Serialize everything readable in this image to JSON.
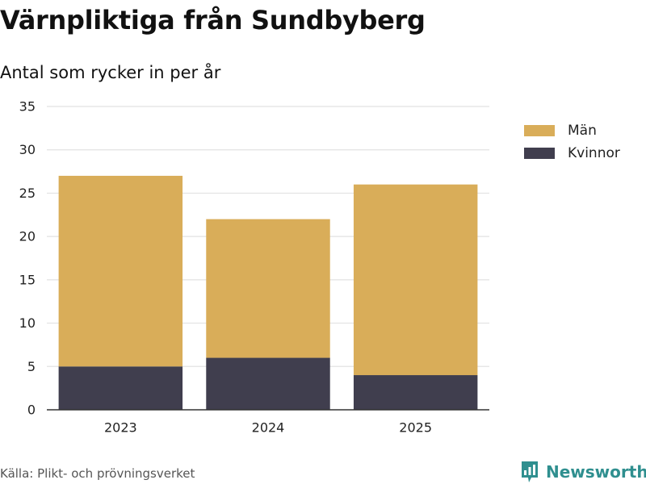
{
  "header": {
    "title": "Värnpliktiga från Sundbyberg",
    "subtitle": "Antal som rycker in per år"
  },
  "legend": {
    "items": [
      {
        "label": "Män",
        "color": "#d9ad59"
      },
      {
        "label": "Kvinnor",
        "color": "#403e4e"
      }
    ]
  },
  "footer": {
    "source": "Källa: Plikt- och prövningsverket",
    "brand": "Newsworthy",
    "brand_color": "#2f8f8f",
    "brand_icon": "newsworthy-logo-icon"
  },
  "chart_data": {
    "type": "bar",
    "stacked": true,
    "title": "Värnpliktiga från Sundbyberg",
    "subtitle": "Antal som rycker in per år",
    "xlabel": "",
    "ylabel": "",
    "categories": [
      "2023",
      "2024",
      "2025"
    ],
    "series": [
      {
        "name": "Kvinnor",
        "values": [
          5,
          6,
          4
        ],
        "color": "#403e4e"
      },
      {
        "name": "Män",
        "values": [
          22,
          16,
          22
        ],
        "color": "#d9ad59"
      }
    ],
    "ylim": [
      0,
      35
    ],
    "yticks": [
      0,
      5,
      10,
      15,
      20,
      25,
      30,
      35
    ],
    "grid": true,
    "legend_position": "top-right",
    "gridline_color": "#e2e2e2",
    "axis_color": "#333333"
  }
}
